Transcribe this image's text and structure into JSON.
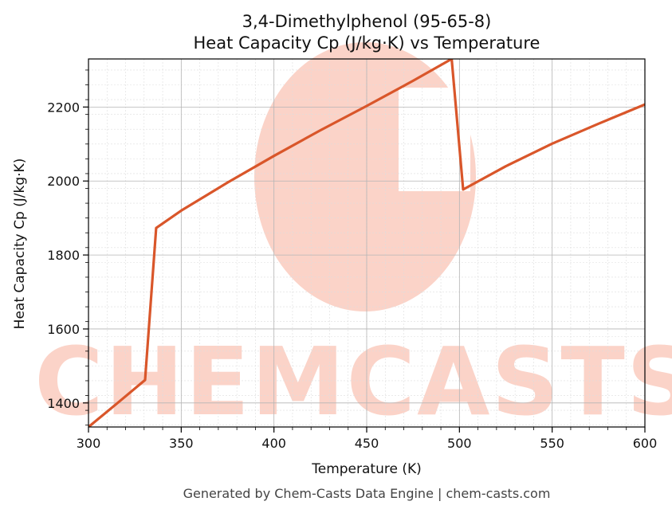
{
  "chart_data": {
    "type": "line",
    "title": "3,4-Dimethylphenol (95-65-8)",
    "subtitle": "Heat Capacity Cp (J/kg·K) vs Temperature",
    "xlabel": "Temperature (K)",
    "ylabel": "Heat Capacity Cp (J/kg·K)",
    "xlim": [
      300,
      600
    ],
    "ylim": [
      1335,
      2330
    ],
    "xticks": [
      300,
      350,
      400,
      450,
      500,
      550,
      600
    ],
    "yticks": [
      1400,
      1600,
      1800,
      2000,
      2200
    ],
    "grid": true,
    "legend": "none",
    "line_color": "#d9562a",
    "series": [
      {
        "x": [
          300,
          315,
          330.5,
          336.5,
          350,
          375,
          400,
          425,
          450,
          475,
          495.8,
          502,
          525,
          550,
          575,
          600
        ],
        "values": [
          1335,
          1397,
          1462,
          1873,
          1920,
          1996,
          2068,
          2137,
          2203,
          2271,
          2330,
          1977,
          2040,
          2101,
          2155,
          2207
        ]
      }
    ],
    "watermark": "CHEMCASTS"
  },
  "footer": "Generated by Chem-Casts Data Engine | chem-casts.com"
}
